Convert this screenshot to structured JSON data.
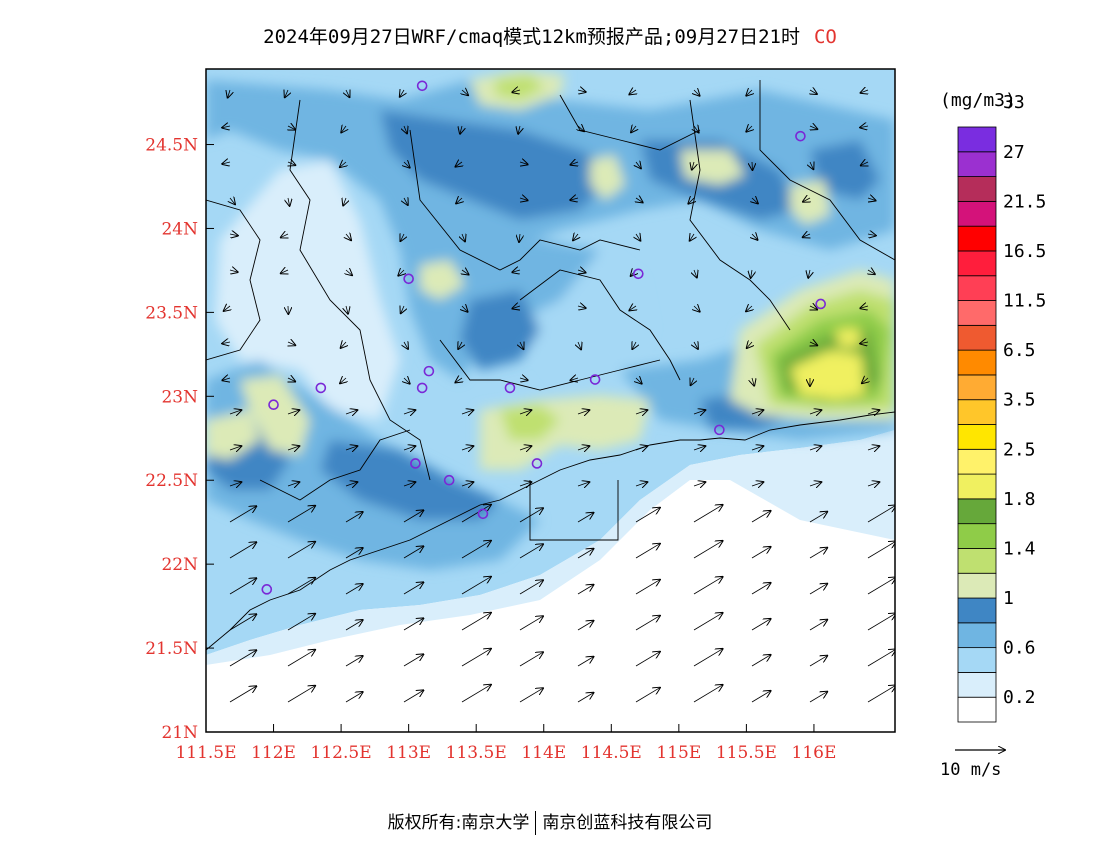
{
  "title": {
    "text": "2024年09月27日WRF/cmaq模式12km预报产品;09月27日21时",
    "variable": "CO"
  },
  "colorbar": {
    "unit": "(mg/m3)",
    "levels": [
      "0.2",
      "0.6",
      "1",
      "1.4",
      "1.8",
      "2.5",
      "3.5",
      "6.5",
      "11.5",
      "16.5",
      "21.5",
      "27",
      "33"
    ],
    "colors": [
      "#ffffff",
      "#d9eefb",
      "#a5d8f5",
      "#6fb5e2",
      "#3f86c4",
      "#dceab7",
      "#bfe070",
      "#8fcc48",
      "#66a83a",
      "#f0f060",
      "#fff26a",
      "#ffe600",
      "#ffc62a",
      "#ffab33",
      "#ff8a00",
      "#ef5a30",
      "#ff6a6a",
      "#ff3f55",
      "#ff1e3c",
      "#ff0000",
      "#d4127a",
      "#b52d5a",
      "#9b30d0",
      "#7a2de0"
    ]
  },
  "axes": {
    "x_labels": [
      "111.5E",
      "112E",
      "112.5E",
      "113E",
      "113.5E",
      "114E",
      "114.5E",
      "115E",
      "115.5E",
      "116E"
    ],
    "y_labels": [
      "21N",
      "21.5N",
      "22N",
      "22.5N",
      "23N",
      "23.5N",
      "24N",
      "24.5N"
    ],
    "lon_range": [
      111.5,
      116.6
    ],
    "lat_range": [
      21.0,
      24.95
    ]
  },
  "wind_reference": {
    "label": "10 m/s"
  },
  "stations": [
    {
      "lon": 113.1,
      "lat": 24.85
    },
    {
      "lon": 115.9,
      "lat": 24.55
    },
    {
      "lon": 113.0,
      "lat": 23.7
    },
    {
      "lon": 114.7,
      "lat": 23.73
    },
    {
      "lon": 116.05,
      "lat": 23.55
    },
    {
      "lon": 112.35,
      "lat": 23.05
    },
    {
      "lon": 113.15,
      "lat": 23.15
    },
    {
      "lon": 113.1,
      "lat": 23.05
    },
    {
      "lon": 113.75,
      "lat": 23.05
    },
    {
      "lon": 114.38,
      "lat": 23.1
    },
    {
      "lon": 112.0,
      "lat": 22.95
    },
    {
      "lon": 115.3,
      "lat": 22.8
    },
    {
      "lon": 113.05,
      "lat": 22.6
    },
    {
      "lon": 113.3,
      "lat": 22.5
    },
    {
      "lon": 113.95,
      "lat": 22.6
    },
    {
      "lon": 113.55,
      "lat": 22.3
    },
    {
      "lon": 111.95,
      "lat": 21.85
    }
  ],
  "footer": {
    "left": "版权所有:南京大学",
    "right": "南京创蓝科技有限公司"
  }
}
